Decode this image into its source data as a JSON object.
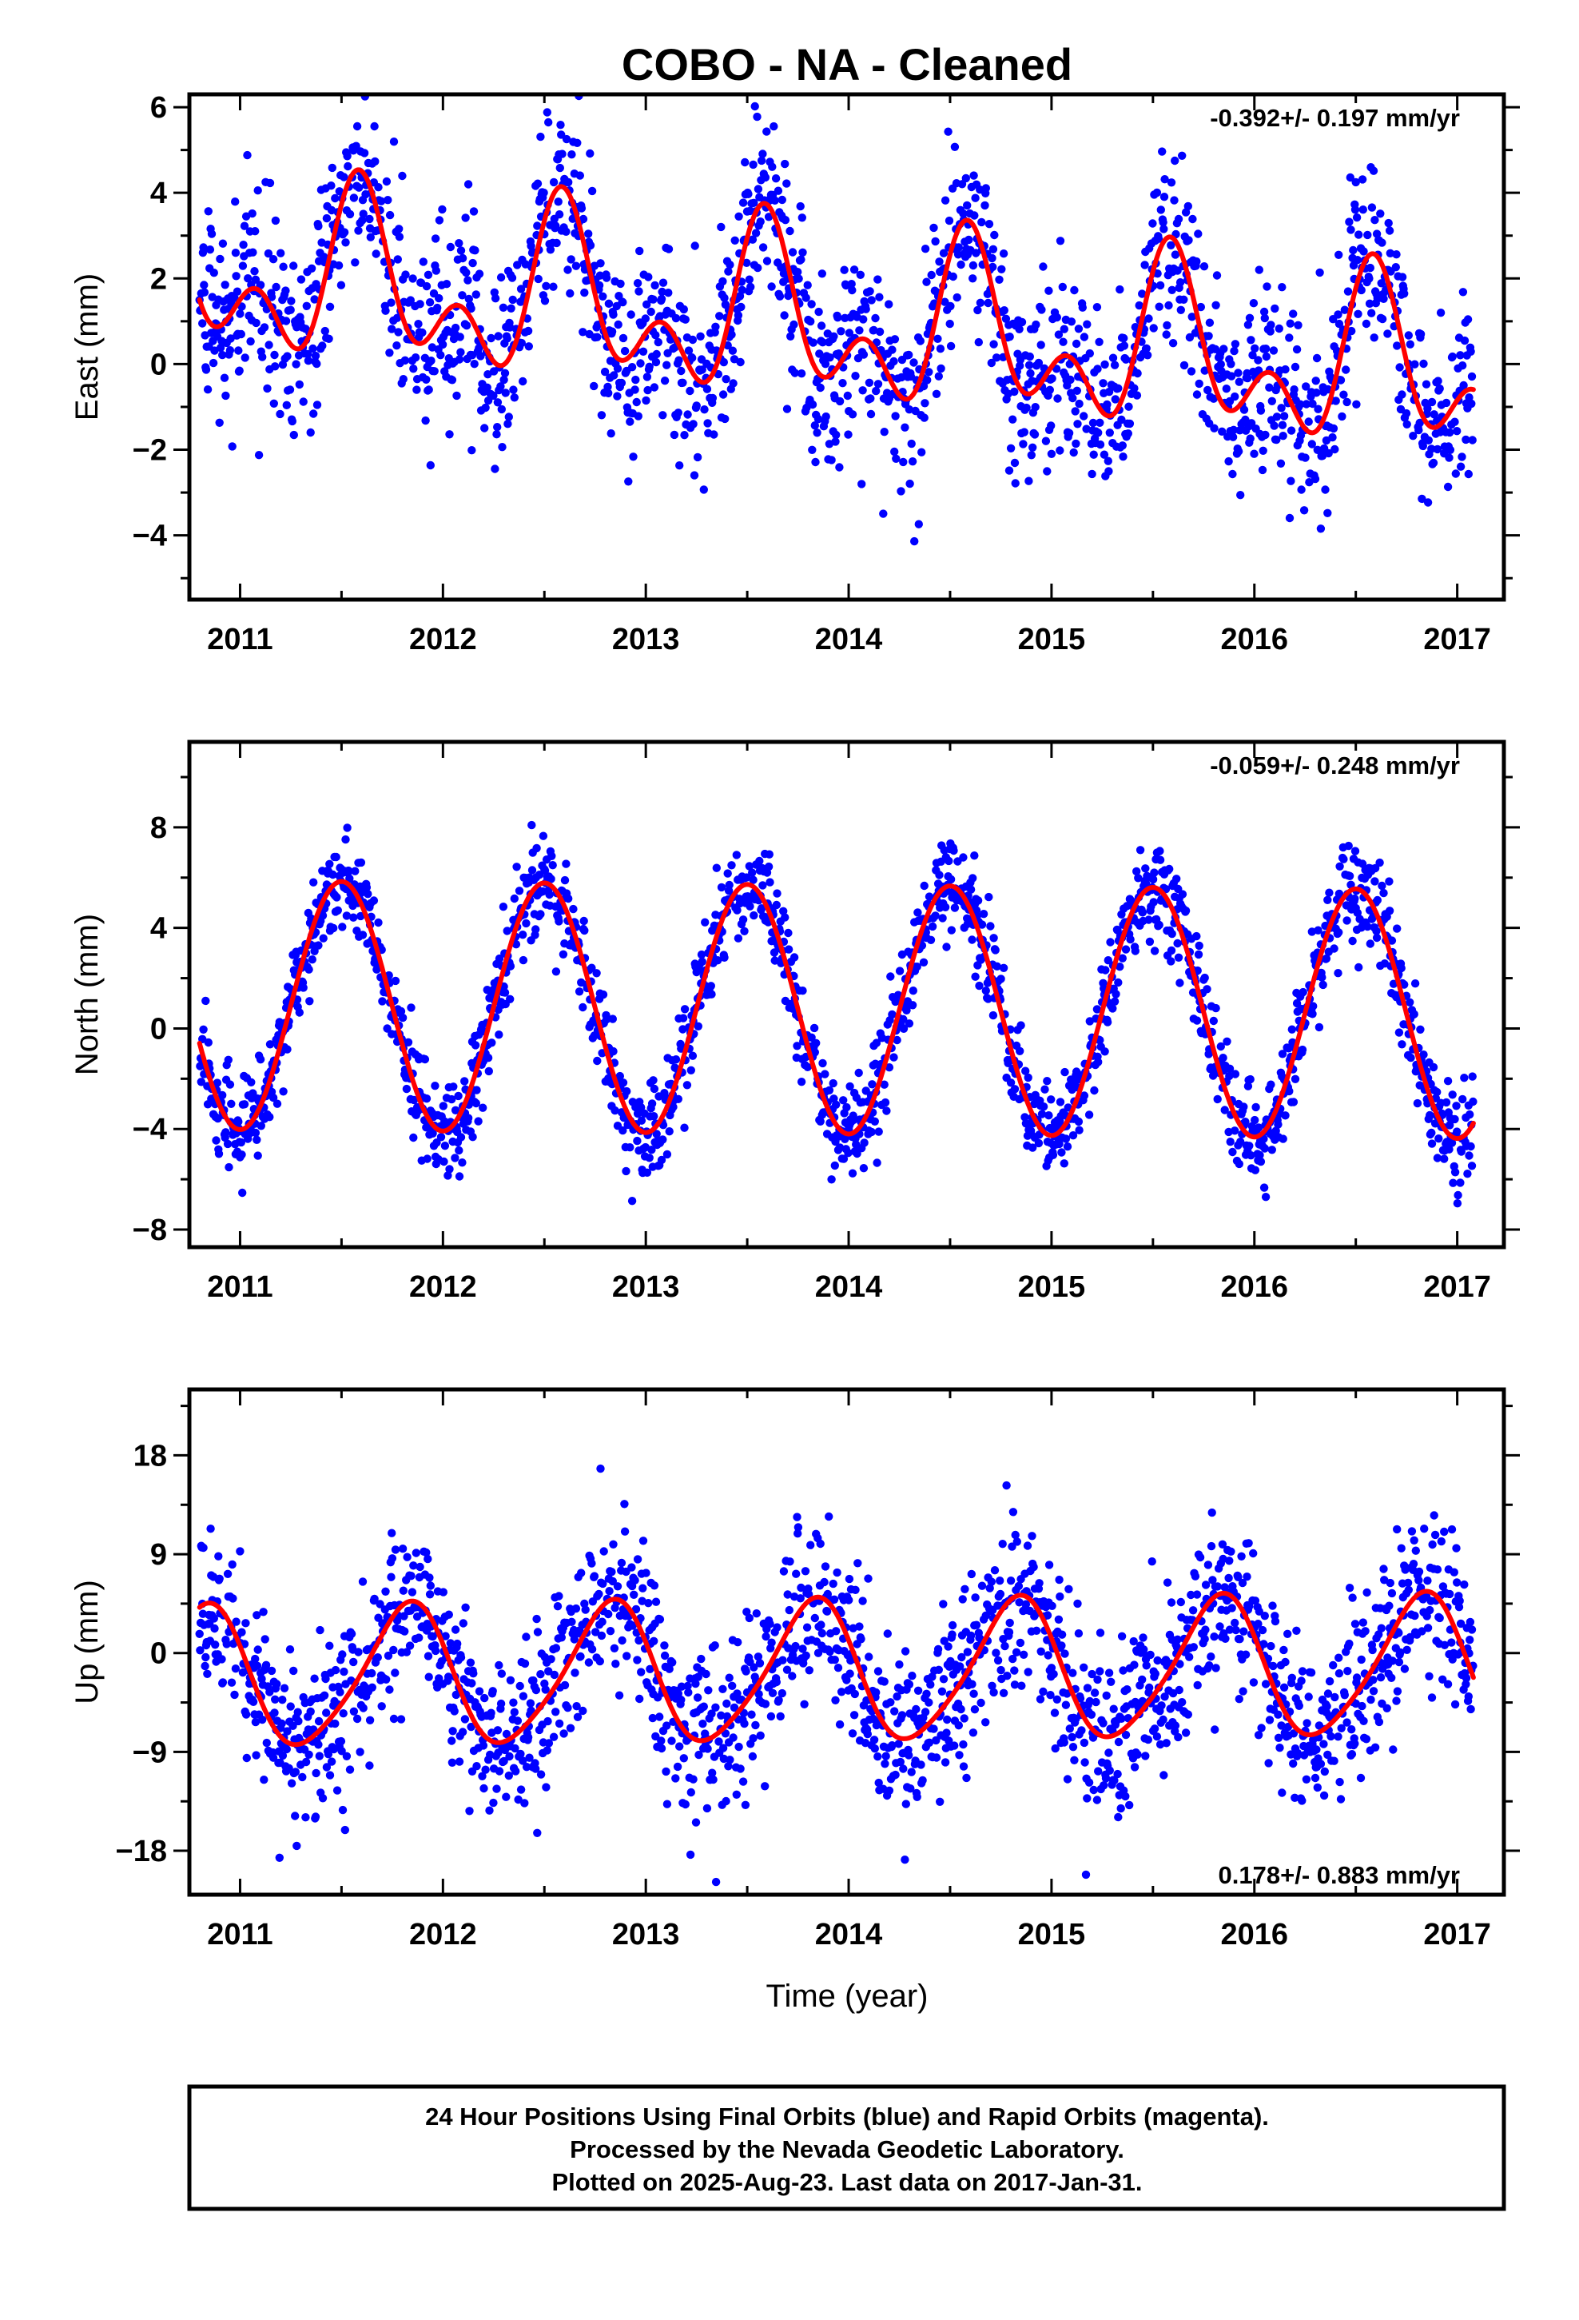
{
  "title": "COBO  - NA - Cleaned",
  "colors": {
    "points": "#0000ff",
    "fit": "#ff0000",
    "axes": "#000000"
  },
  "chart_data": [
    {
      "type": "scatter",
      "id": "east",
      "ylabel": "East (mm)",
      "xlim": [
        2010.75,
        2017.23
      ],
      "ylim": [
        -5.5,
        6.3
      ],
      "yticks": [
        -4,
        -2,
        0,
        2,
        4,
        6
      ],
      "xticks": [
        2011,
        2012,
        2013,
        2014,
        2015,
        2016,
        2017
      ],
      "rate_label": "-0.392+/- 0.197 mm/yr",
      "rate_position": "top-right",
      "data_start": 2010.8,
      "data_end": 2017.08,
      "fit": {
        "rate": -0.392,
        "offset": 0.9,
        "annual_amp": 1.5,
        "annual_peak": 0.6,
        "semiannual_amp": 1.2,
        "semiannual_peak": 0.58
      },
      "scatter_sigma": 1.1,
      "series": [
        {
          "name": "Final Orbits (blue)",
          "style": "points",
          "color": "#0000ff"
        },
        {
          "name": "model fit",
          "style": "line",
          "color": "#ff0000"
        }
      ]
    },
    {
      "type": "scatter",
      "id": "north",
      "ylabel": "North (mm)",
      "xlim": [
        2010.75,
        2017.23
      ],
      "ylim": [
        -8.7,
        11.4
      ],
      "yticks": [
        -8,
        -4,
        0,
        4,
        8
      ],
      "xticks": [
        2011,
        2012,
        2013,
        2014,
        2015,
        2016,
        2017
      ],
      "rate_label": "-0.059+/- 0.248 mm/yr",
      "rate_position": "top-right",
      "data_start": 2010.8,
      "data_end": 2017.08,
      "fit": {
        "rate": -0.059,
        "offset": 0.75,
        "annual_amp": 4.95,
        "annual_peak": 0.5,
        "semiannual_amp": 0.0,
        "semiannual_peak": 0.0
      },
      "scatter_sigma": 1.0,
      "series": [
        {
          "name": "Final Orbits (blue)",
          "style": "points",
          "color": "#0000ff"
        },
        {
          "name": "model fit",
          "style": "line",
          "color": "#ff0000"
        }
      ]
    },
    {
      "type": "scatter",
      "id": "up",
      "ylabel": "Up (mm)",
      "xlim": [
        2010.75,
        2017.23
      ],
      "ylim": [
        -22,
        24
      ],
      "yticks": [
        -18,
        -9,
        0,
        9,
        18
      ],
      "xticks": [
        2011,
        2012,
        2013,
        2014,
        2015,
        2016,
        2017
      ],
      "xlabel": "Time (year)",
      "rate_label": "0.178+/- 0.883 mm/yr",
      "rate_position": "bottom-right",
      "data_start": 2010.8,
      "data_end": 2017.08,
      "fit": {
        "rate": 0.178,
        "offset": -1.8,
        "annual_amp": 6.3,
        "annual_peak": 0.82,
        "semiannual_amp": 0.9,
        "semiannual_peak": 0.9
      },
      "scatter_sigma": 3.9,
      "series": [
        {
          "name": "Final Orbits (blue)",
          "style": "points",
          "color": "#0000ff"
        },
        {
          "name": "model fit",
          "style": "line",
          "color": "#ff0000"
        }
      ]
    }
  ],
  "footer": {
    "line1": "24 Hour Positions Using Final Orbits (blue) and Rapid Orbits (magenta).",
    "line2": "Processed by the Nevada Geodetic Laboratory.",
    "line3": "Plotted on 2025-Aug-23. Last data on 2017-Jan-31."
  }
}
